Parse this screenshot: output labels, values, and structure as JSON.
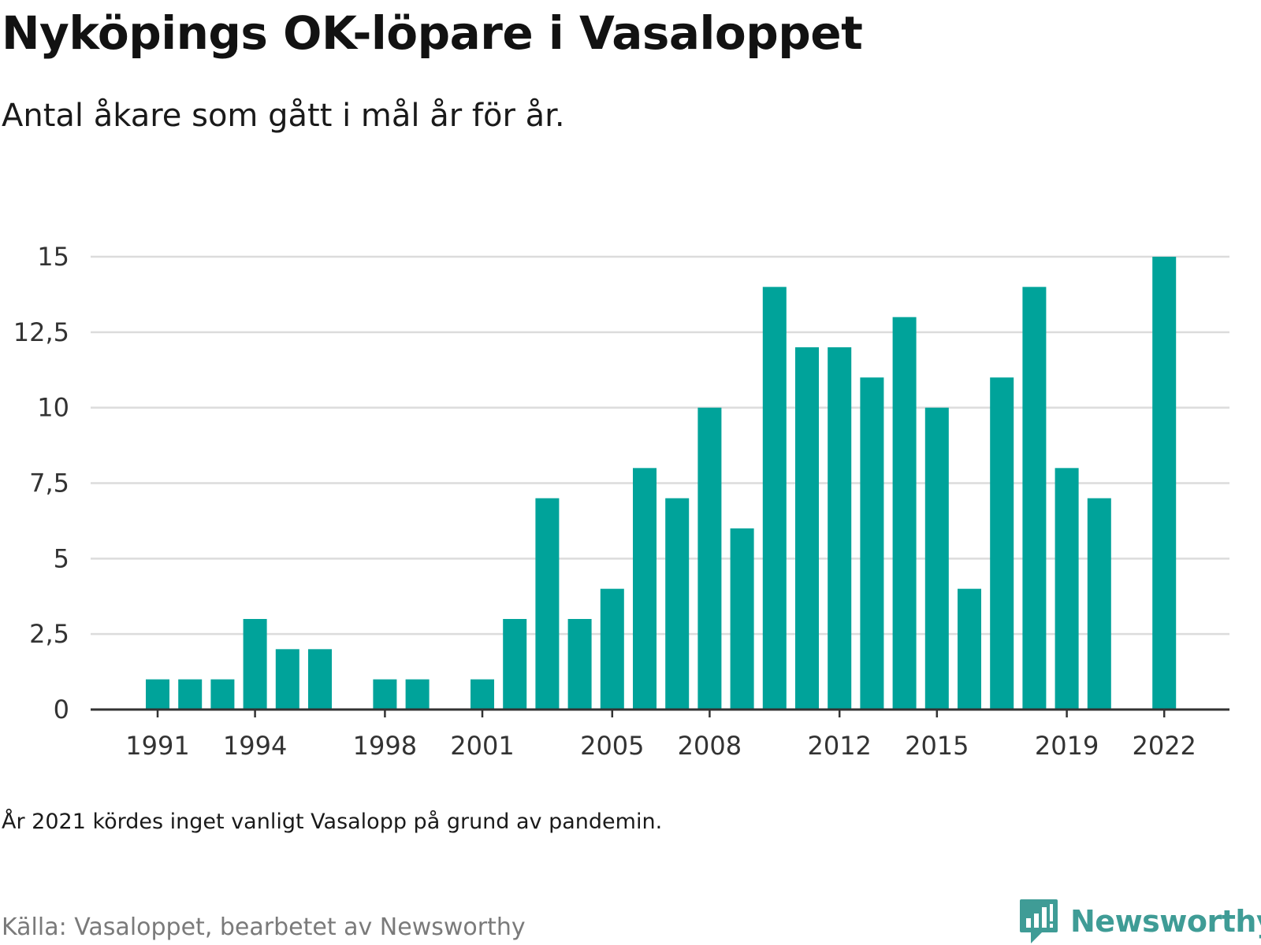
{
  "chart_data": {
    "type": "bar",
    "title": "Nyköpings OK-löpare i Vasaloppet",
    "subtitle": "Antal åkare som gått i mål år för år.",
    "x": [
      1991,
      1992,
      1993,
      1994,
      1995,
      1996,
      1997,
      1998,
      1999,
      2000,
      2001,
      2002,
      2003,
      2004,
      2005,
      2006,
      2007,
      2008,
      2009,
      2010,
      2011,
      2012,
      2013,
      2014,
      2015,
      2016,
      2017,
      2018,
      2019,
      2020,
      2021,
      2022
    ],
    "values": [
      1,
      1,
      1,
      3,
      2,
      2,
      0,
      1,
      1,
      0,
      1,
      3,
      7,
      3,
      4,
      8,
      7,
      10,
      6,
      14,
      12,
      12,
      11,
      13,
      10,
      4,
      11,
      14,
      8,
      7,
      0,
      15
    ],
    "x_tick_labels": [
      "1991",
      "1994",
      "1998",
      "2001",
      "2005",
      "2008",
      "2012",
      "2015",
      "2019",
      "2022"
    ],
    "y_ticks": [
      0,
      2.5,
      5,
      7.5,
      10,
      12.5,
      15
    ],
    "y_tick_labels": [
      "0",
      "2,5",
      "5",
      "7,5",
      "10",
      "12,5",
      "15"
    ],
    "ylim": [
      0,
      15
    ],
    "grid": true,
    "bar_color": "#00a39a",
    "xlabel": "",
    "ylabel": ""
  },
  "note": "År 2021 kördes inget vanligt Vasalopp på grund av pandemin.",
  "source": "Källa: Vasaloppet, bearbetet av Newsworthy",
  "logo": {
    "text": "Newsworthy",
    "icon": "newsworthy-logo-icon",
    "color": "#3f9c96"
  }
}
